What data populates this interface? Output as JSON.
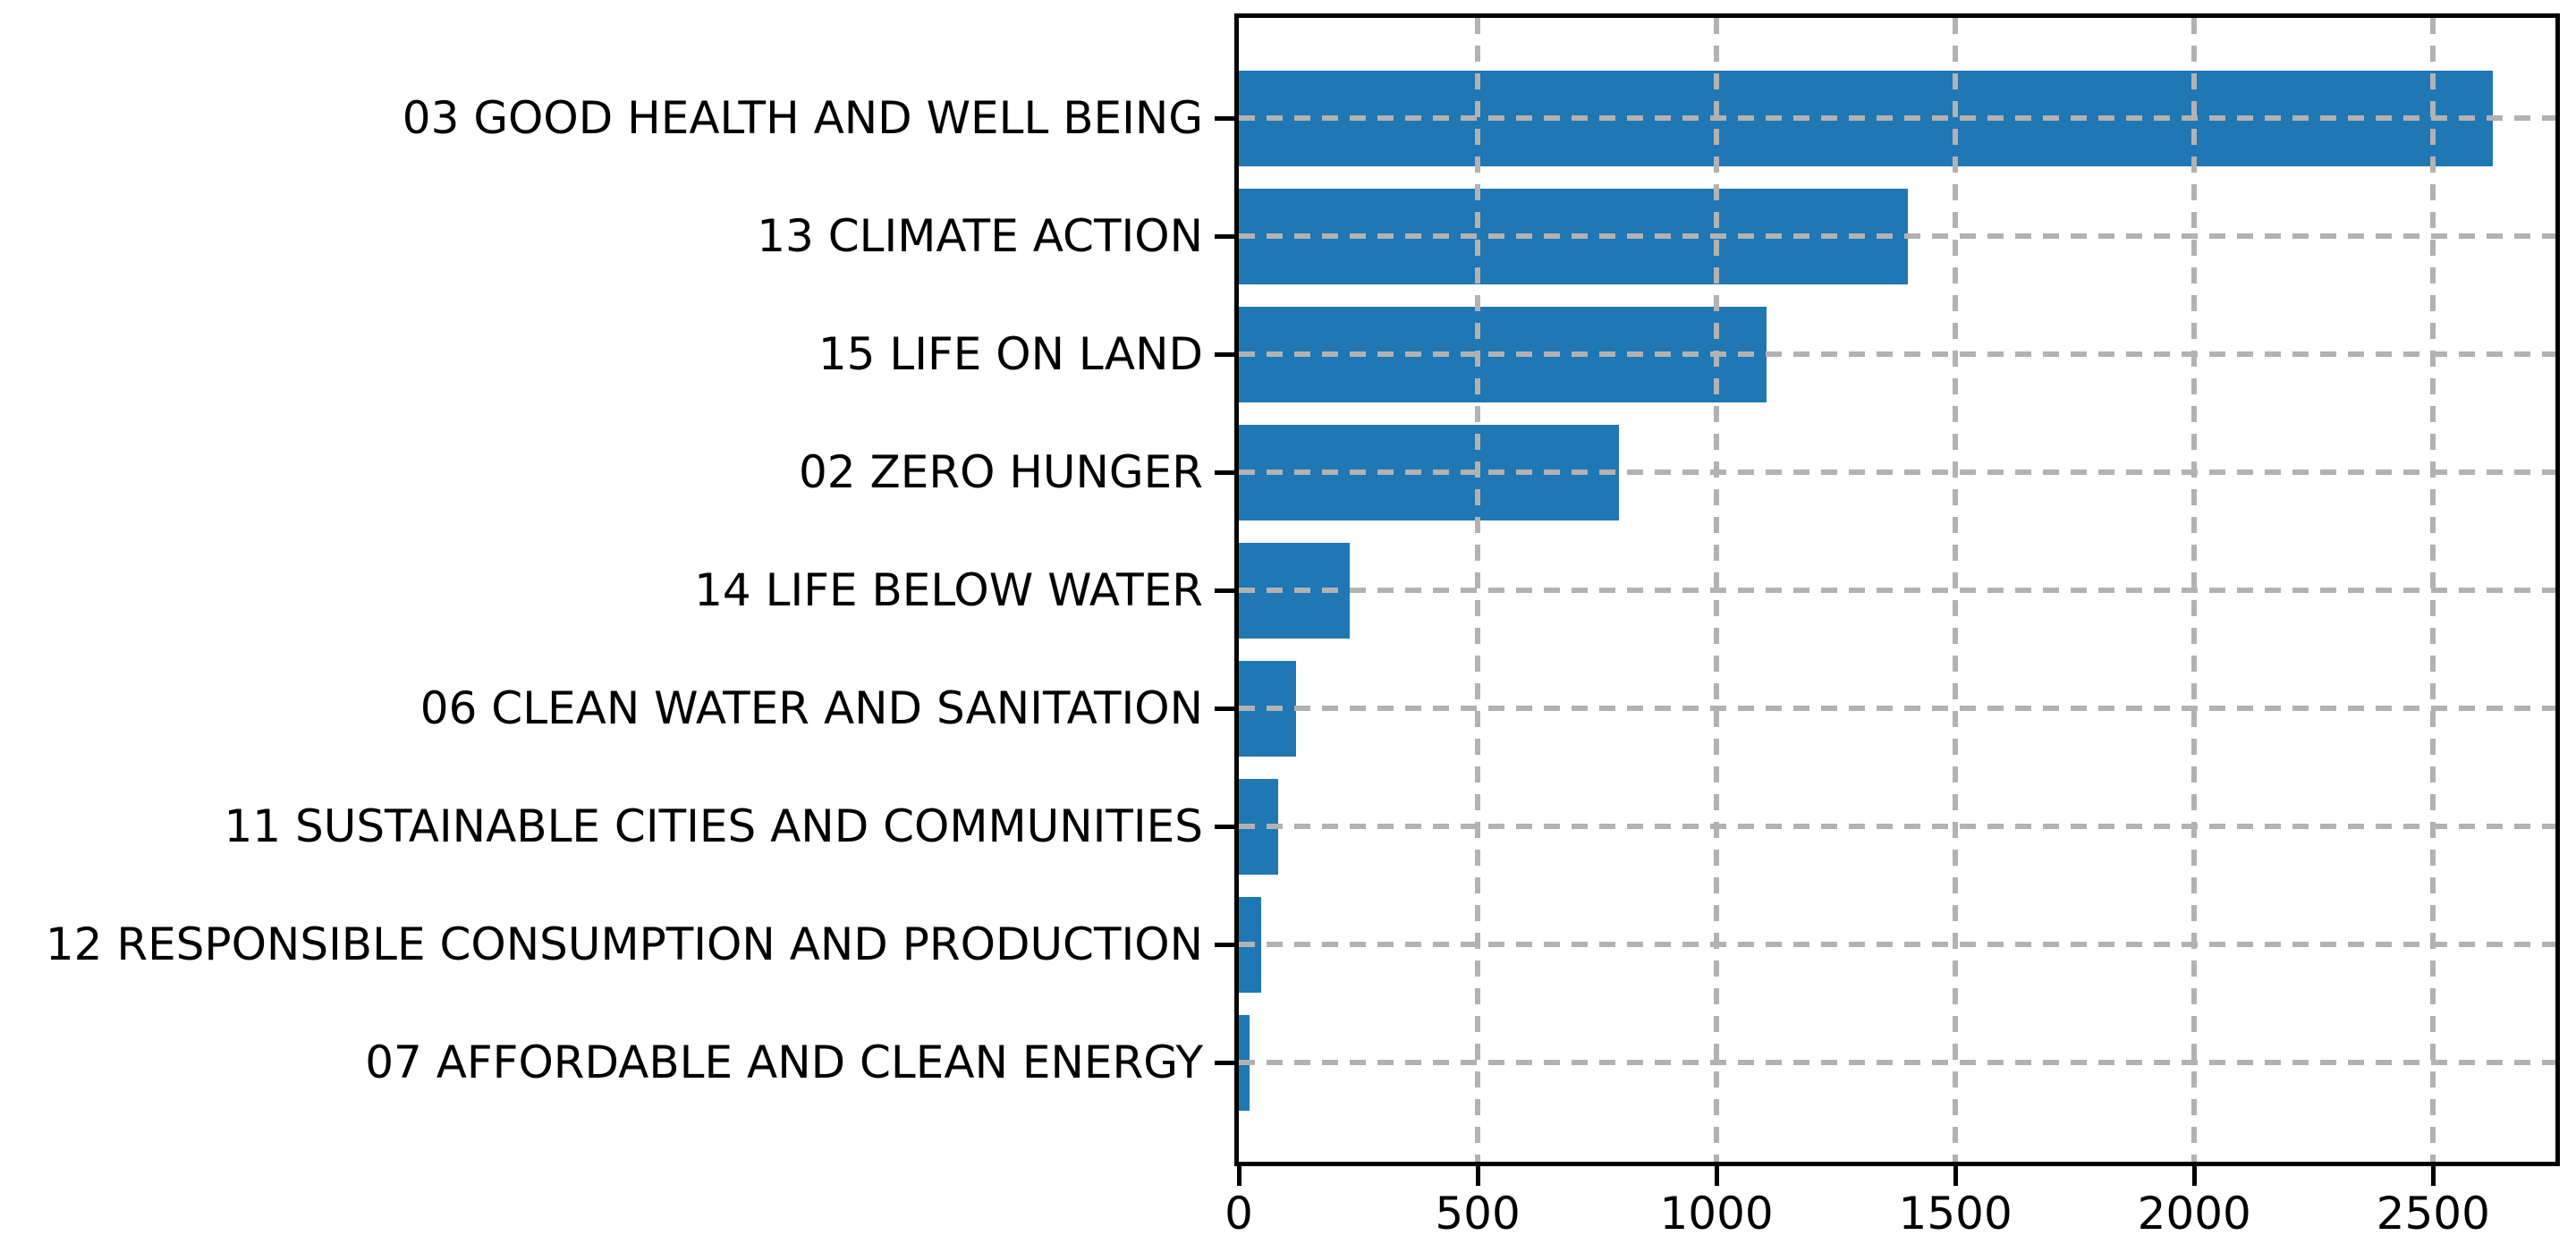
{
  "figure": {
    "background_color": "#ffffff"
  },
  "chart_data": {
    "type": "bar",
    "orientation": "horizontal",
    "title": "",
    "xlabel": "",
    "ylabel": "",
    "categories": [
      "03 GOOD HEALTH AND WELL BEING",
      "13 CLIMATE ACTION",
      "15 LIFE ON LAND",
      "02 ZERO HUNGER",
      "14 LIFE BELOW WATER",
      "06 CLEAN WATER AND SANITATION",
      "11 SUSTAINABLE CITIES AND COMMUNITIES",
      "12 RESPONSIBLE CONSUMPTION AND PRODUCTION",
      "07 AFFORDABLE AND CLEAN ENERGY"
    ],
    "values": [
      2625,
      1400,
      1105,
      795,
      232,
      119,
      82,
      46,
      22
    ],
    "x_ticks": [
      0,
      500,
      1000,
      1500,
      2000,
      2500
    ],
    "x_tick_labels": [
      "0",
      "500",
      "1000",
      "1500",
      "2000",
      "2500"
    ],
    "xlim": [
      0,
      2756
    ],
    "grid": "dashed gridlines on both axes, drawn above bars",
    "legend": "none",
    "bar_color": "#1f77b4",
    "grid_color": "#b2b2b2",
    "axis_color": "#000000",
    "text_color": "#000000"
  }
}
